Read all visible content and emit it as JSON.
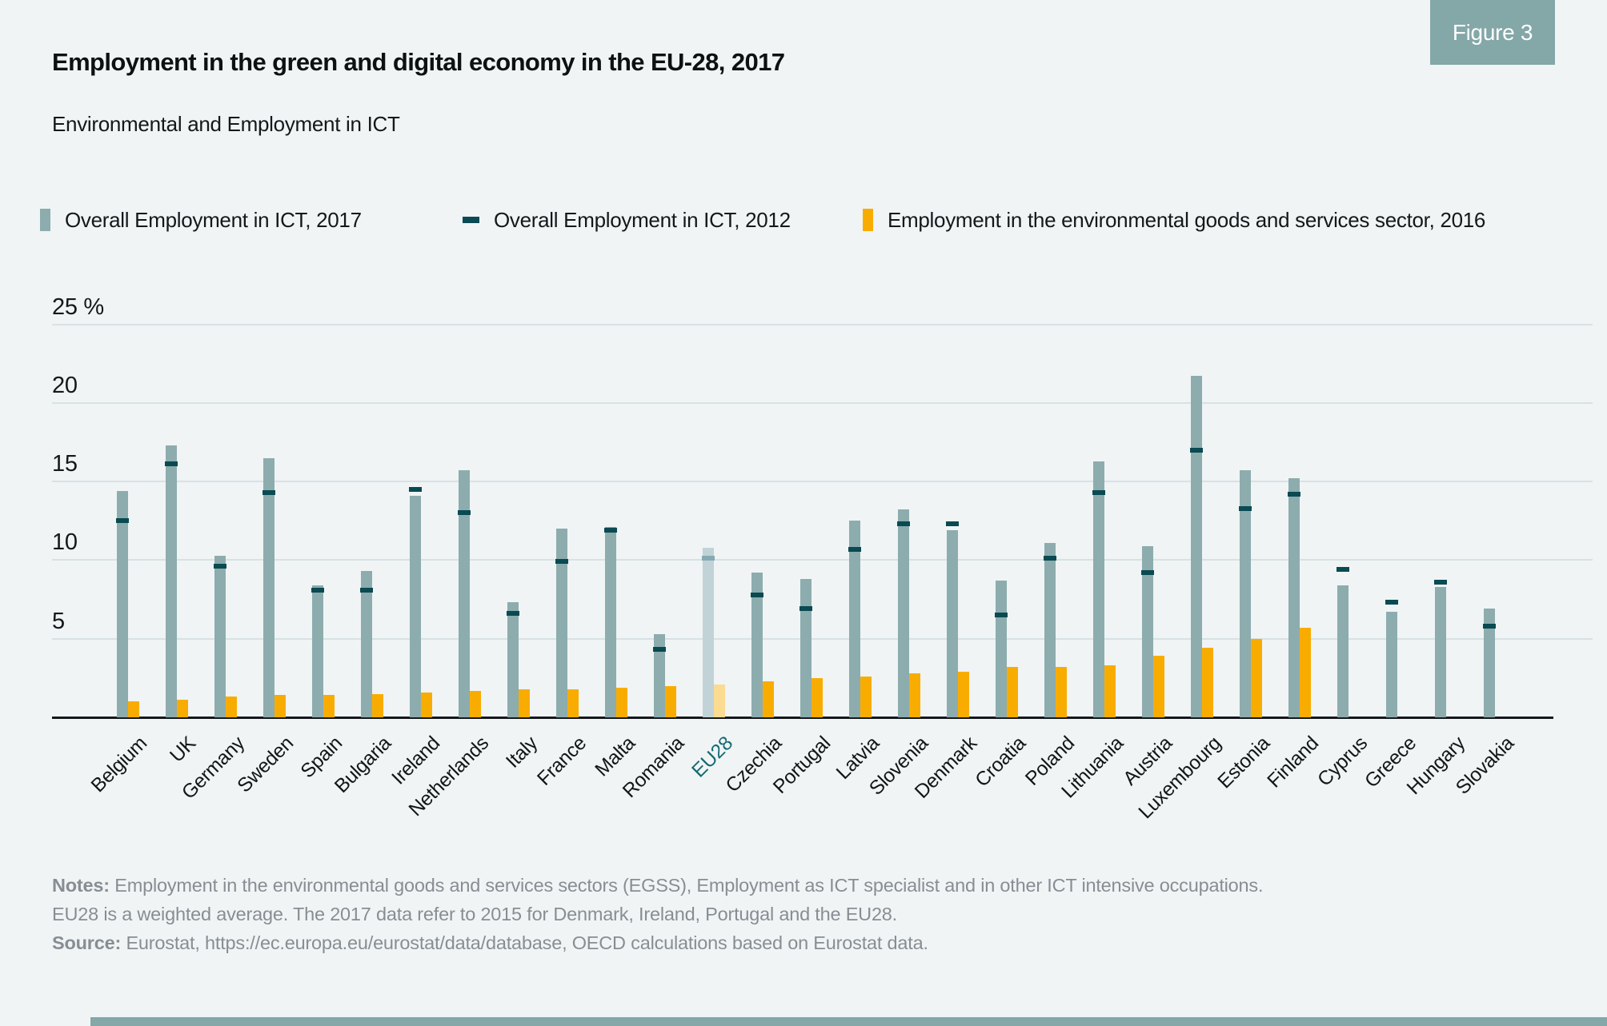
{
  "figure_badge": "Figure 3",
  "title": "Employment in the green and digital economy in the EU-28, 2017",
  "subtitle": "Environmental and Employment in ICT",
  "accent": {
    "badge_bg": "#84a7a8",
    "bottom_bar": "#84a7a8"
  },
  "legend": [
    {
      "label": "Overall Employment in ICT, 2017",
      "swatch": "bar",
      "color": "#8dacae"
    },
    {
      "label": "Overall Employment in ICT, 2012",
      "swatch": "dash",
      "color": "#0a4a52"
    },
    {
      "label": "Employment in the environmental goods and services sector, 2016",
      "swatch": "bar",
      "color": "#f9ac00"
    }
  ],
  "y_axis": {
    "top_label": "25 %",
    "ticks": [
      25,
      20,
      15,
      10,
      5
    ]
  },
  "chart_data": {
    "type": "bar",
    "title": "Employment in the green and digital economy in the EU-28, 2017",
    "ylim": [
      0,
      25
    ],
    "grid": true,
    "legend_position": "top",
    "categories": [
      "Belgium",
      "UK",
      "Germany",
      "Sweden",
      "Spain",
      "Bulgaria",
      "Ireland",
      "Netherlands",
      "Italy",
      "France",
      "Malta",
      "Romania",
      "EU28",
      "Czechia",
      "Portugal",
      "Latvia",
      "Slovenia",
      "Denmark",
      "Croatia",
      "Poland",
      "Lithuania",
      "Austria",
      "Luxembourg",
      "Estonia",
      "Finland",
      "Cyprus",
      "Greece",
      "Hungary",
      "Slovakia"
    ],
    "series": [
      {
        "name": "Overall Employment in ICT, 2017",
        "style": "bar",
        "color": "#8dacae",
        "values": [
          14.4,
          17.3,
          10.3,
          16.5,
          8.4,
          9.3,
          14.1,
          15.7,
          7.3,
          12.0,
          12.1,
          5.3,
          10.8,
          9.2,
          8.8,
          12.5,
          13.2,
          11.9,
          8.7,
          11.1,
          16.3,
          10.9,
          21.7,
          15.7,
          15.2,
          8.4,
          6.7,
          8.3,
          6.9
        ]
      },
      {
        "name": "Overall Employment in ICT, 2012",
        "style": "dash",
        "color": "#0a4a52",
        "values": [
          12.5,
          16.1,
          9.6,
          14.3,
          8.1,
          8.1,
          14.5,
          13.0,
          6.6,
          9.9,
          11.9,
          4.3,
          10.1,
          7.8,
          6.9,
          10.7,
          12.3,
          12.3,
          6.5,
          10.1,
          14.3,
          9.2,
          17.0,
          13.3,
          14.2,
          9.4,
          7.3,
          8.6,
          5.8
        ]
      },
      {
        "name": "Employment in the environmental goods and services sector, 2016",
        "style": "bar",
        "color": "#f9ac00",
        "values": [
          1.0,
          1.1,
          1.3,
          1.4,
          1.4,
          1.5,
          1.6,
          1.7,
          1.8,
          1.8,
          1.9,
          2.0,
          2.1,
          2.3,
          2.5,
          2.6,
          2.8,
          2.9,
          3.2,
          3.2,
          3.3,
          3.9,
          4.4,
          5.0,
          5.7,
          null,
          null,
          null,
          null
        ]
      }
    ],
    "highlight_category": "EU28",
    "highlight_colors": {
      "bar_2017": "#c1d3d6",
      "dash_2012": "#84abb2",
      "bar_egss": "#fbda92",
      "label": "#156a72"
    }
  },
  "notes": {
    "notes_label": "Notes:",
    "line1": " Employment in the environmental goods and services sectors (EGSS), Employment as ICT specialist and in other ICT intensive occupations.",
    "line2": "EU28 is a weighted average. The 2017 data refer to 2015 for Denmark, Ireland, Portugal and the EU28.",
    "source_label": "Source:",
    "source_text": " Eurostat, https://ec.europa.eu/eurostat/data/database, OECD calculations based on Eurostat data."
  }
}
